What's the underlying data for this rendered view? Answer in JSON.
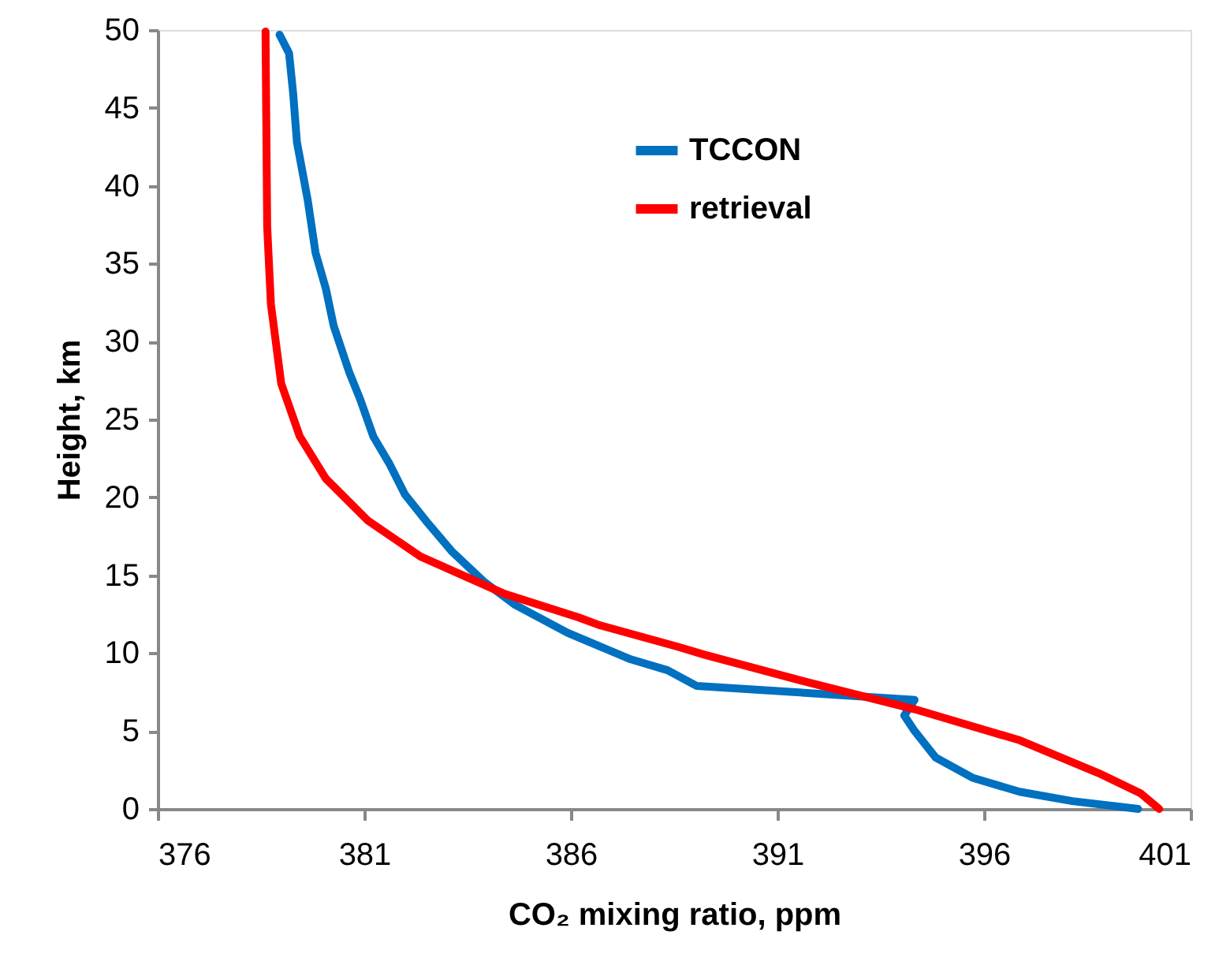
{
  "chart_data": {
    "type": "line",
    "xlabel": "CO₂ mixing ratio, ppm",
    "ylabel": "Height, km",
    "xlim": [
      376,
      401
    ],
    "xticks": [
      376,
      381,
      386,
      391,
      396,
      401
    ],
    "ylim": [
      0,
      50
    ],
    "yticks": [
      0,
      5,
      10,
      15,
      20,
      25,
      30,
      35,
      40,
      45,
      50
    ],
    "grid": false,
    "legend": "top right",
    "marker": "none",
    "line_style": "solid",
    "series": [
      {
        "name": "TCCON",
        "color": "#0070c0",
        "x": [
          378.95,
          379.18,
          379.28,
          379.37,
          379.63,
          379.82,
          380.07,
          380.26,
          380.64,
          380.9,
          381.22,
          381.6,
          381.98,
          382.49,
          383.13,
          383.89,
          384.65,
          385.92,
          387.45,
          388.34,
          389.04,
          394.32,
          394.07,
          394.32,
          394.83,
          395.72,
          396.86,
          398.14,
          399.73
        ],
        "values": [
          49.7,
          48.5,
          45.9,
          42.8,
          39.1,
          35.7,
          33.4,
          31.0,
          28.0,
          26.3,
          23.9,
          22.2,
          20.2,
          18.5,
          16.5,
          14.6,
          13.1,
          11.3,
          9.6,
          8.9,
          7.9,
          7.0,
          6.0,
          5.0,
          3.3,
          2.0,
          1.1,
          0.5,
          0.0
        ]
      },
      {
        "name": "retrieval",
        "color": "#ff0000",
        "x": [
          378.61,
          378.65,
          378.74,
          378.99,
          379.44,
          380.07,
          381.09,
          382.36,
          384.4,
          386.18,
          386.69,
          388.6,
          389.23,
          391.77,
          394.32,
          396.87,
          398.77,
          399.79,
          400.24
        ],
        "values": [
          49.9,
          37.4,
          32.4,
          27.3,
          23.9,
          21.2,
          18.5,
          16.2,
          13.8,
          12.3,
          11.8,
          10.4,
          9.9,
          8.1,
          6.4,
          4.4,
          2.3,
          1.0,
          0.0
        ]
      }
    ]
  }
}
